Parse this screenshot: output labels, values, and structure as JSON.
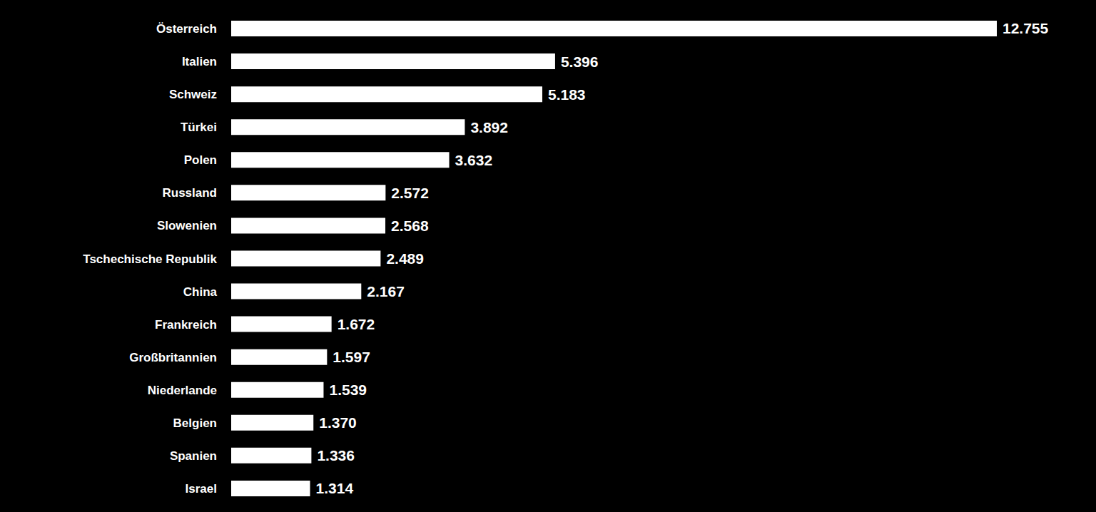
{
  "chart_data": {
    "type": "bar",
    "orientation": "horizontal",
    "categories": [
      "Österreich",
      "Italien",
      "Schweiz",
      "Türkei",
      "Polen",
      "Russland",
      "Slowenien",
      "Tschechische Republik",
      "China",
      "Frankreich",
      "Großbritannien",
      "Niederlande",
      "Belgien",
      "Spanien",
      "Israel"
    ],
    "values": [
      12755,
      5396,
      5183,
      3892,
      3632,
      2572,
      2568,
      2489,
      2167,
      1672,
      1597,
      1539,
      1370,
      1336,
      1314
    ],
    "value_labels": [
      "12.755",
      "5.396",
      "5.183",
      "3.892",
      "3.632",
      "2.572",
      "2.568",
      "2.489",
      "2.167",
      "1.672",
      "1.597",
      "1.539",
      "1.370",
      "1.336",
      "1.314"
    ],
    "color": "#ffffff",
    "data_labels": true,
    "tick_labels": "y",
    "grid": false
  }
}
